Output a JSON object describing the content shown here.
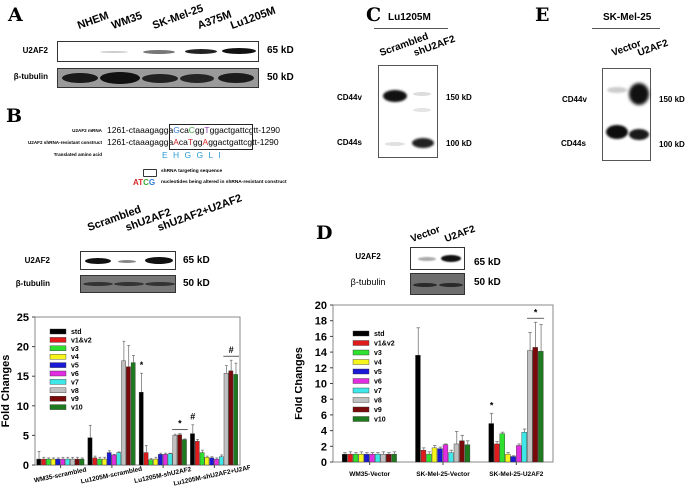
{
  "panels": {
    "A": {
      "letter": "A",
      "lanes": [
        "NHEM",
        "WM35",
        "SK-Mel-25",
        "A375M",
        "Lu1205M"
      ],
      "rows": [
        {
          "label": "U2AF2",
          "kd": "65 kD",
          "intensities": [
            0.0,
            0.15,
            0.35,
            0.85,
            0.95
          ]
        },
        {
          "label": "β-tubulin",
          "kd": "50 kD",
          "intensities": [
            1,
            1,
            1,
            1,
            1
          ]
        }
      ]
    },
    "B": {
      "letter": "B",
      "sequence": {
        "mrna_label": "U2AF2 mRNA",
        "mrna_start": "1261-",
        "mrna_prefix": "ctaaagagga",
        "mrna_boxed": [
          {
            "t": "G",
            "c": "#2b7bd6"
          },
          {
            "t": "ca",
            "c": "#000"
          },
          {
            "t": "C",
            "c": "#3aaa35"
          },
          {
            "t": "gg",
            "c": "#000"
          },
          {
            "t": "T",
            "c": "#8a3fa8"
          },
          {
            "t": "ggactgattcgtt",
            "c": "#000"
          }
        ],
        "mrna_end": "-1290",
        "construct_label": "U2AF2 shRNA-resistant construct",
        "construct_start": "1261-",
        "construct_prefix": "ctaaagagga",
        "construct_boxed": [
          {
            "t": "A",
            "c": "#d62828"
          },
          {
            "t": "ca",
            "c": "#000"
          },
          {
            "t": "T",
            "c": "#d62828"
          },
          {
            "t": "gg",
            "c": "#000"
          },
          {
            "t": "A",
            "c": "#d62828"
          },
          {
            "t": "ggactgattcgtt",
            "c": "#000"
          }
        ],
        "construct_end": "-1290",
        "amino_label": "Translated amino acid",
        "amino_acids": "E H G G L I",
        "amino_color": "#2b9bd6",
        "legend_box_text": "shRNA targeting sequence",
        "legend_letters": [
          {
            "t": "A",
            "c": "#d62828"
          },
          {
            "t": "T",
            "c": "#d62828"
          },
          {
            "t": "C",
            "c": "#3aaa35"
          },
          {
            "t": "G",
            "c": "#2b7bd6"
          }
        ],
        "legend_letters_text": "nucleotides being altered in shRNA-resistant construct"
      },
      "lanes": [
        "Scrambled",
        "shU2AF2",
        "shU2AF2+U2AF2"
      ],
      "rows": [
        {
          "label": "U2AF2",
          "kd": "65 kD"
        },
        {
          "label": "β-tubulin",
          "kd": "50 kD"
        }
      ]
    },
    "C": {
      "letter": "C",
      "title": "Lu1205M",
      "lanes": [
        "Scrambled",
        "shU2AF2"
      ],
      "row_labels": [
        "CD44v",
        "CD44s"
      ],
      "kd_labels": [
        "150 kD",
        "100 kD"
      ]
    },
    "D": {
      "letter": "D",
      "lanes": [
        "Vector",
        "U2AF2"
      ],
      "rows": [
        {
          "label": "U2AF2",
          "kd": "65 kD"
        },
        {
          "label": "β-tubulin",
          "kd": "50 kD"
        }
      ]
    },
    "E": {
      "letter": "E",
      "title": "SK-Mel-25",
      "lanes": [
        "Vector",
        "U2AF2"
      ],
      "row_labels": [
        "CD44v",
        "CD44s"
      ],
      "kd_labels": [
        "150 kD",
        "100 kD"
      ]
    }
  },
  "series_colors": {
    "std": "#000000",
    "v1&v2": "#e01b1b",
    "v3": "#2fe02f",
    "v4": "#f5f51c",
    "v5": "#1a1ad6",
    "v6": "#e02ee0",
    "v7": "#3ee8e8",
    "v8": "#c0c0c0",
    "v9": "#7a0a0a",
    "v10": "#1e7a1e"
  },
  "chart_data": [
    {
      "type": "bar",
      "panel": "B",
      "title": "",
      "xlabel": "",
      "ylabel": "Fold Changes",
      "ylim": [
        0,
        25
      ],
      "yticks": [
        0,
        5,
        10,
        15,
        20,
        25
      ],
      "grid": false,
      "legend_position": "upper-left inside",
      "categories": [
        "WM35-scrambled",
        "Lu1205M-scrambled",
        "Lu1205M-shU2AF2",
        "Lu1205M-shU2AF2+U2AF2"
      ],
      "series": [
        {
          "name": "std",
          "values": [
            1.0,
            4.6,
            12.3,
            5.3
          ],
          "errors": [
            1.3,
            2.1,
            3.2,
            1.5
          ]
        },
        {
          "name": "v1&v2",
          "values": [
            1.0,
            1.2,
            2.1,
            4.0
          ],
          "errors": [
            0.3,
            0.3,
            1.2,
            0.3
          ]
        },
        {
          "name": "v3",
          "values": [
            1.0,
            1.0,
            0.9,
            2.1
          ],
          "errors": [
            0.2,
            0.3,
            0.2,
            0.4
          ]
        },
        {
          "name": "v4",
          "values": [
            1.0,
            1.0,
            1.0,
            1.3
          ],
          "errors": [
            0.2,
            0.3,
            0.3,
            0.2
          ]
        },
        {
          "name": "v5",
          "values": [
            1.0,
            2.1,
            1.8,
            1.2
          ],
          "errors": [
            0.2,
            0.3,
            0.2,
            0.2
          ]
        },
        {
          "name": "v6",
          "values": [
            1.0,
            1.7,
            1.8,
            1.0
          ],
          "errors": [
            0.3,
            0.1,
            0.2,
            0.2
          ]
        },
        {
          "name": "v7",
          "values": [
            1.0,
            2.1,
            1.9,
            1.4
          ],
          "errors": [
            0.3,
            0.1,
            0.1,
            0.3
          ]
        },
        {
          "name": "v8",
          "values": [
            1.0,
            17.6,
            5.0,
            15.5
          ],
          "errors": [
            0.3,
            3.3,
            0.2,
            1.3
          ]
        },
        {
          "name": "v9",
          "values": [
            1.0,
            16.6,
            5.1,
            15.9
          ],
          "errors": [
            0.3,
            3.6,
            0.2,
            1.8
          ]
        },
        {
          "name": "v10",
          "values": [
            1.0,
            17.3,
            4.3,
            15.3
          ],
          "errors": [
            0.2,
            1.2,
            0.1,
            1.9
          ]
        }
      ],
      "annotations": [
        {
          "text": "*",
          "category": "Lu1205M-shU2AF2",
          "series": "std"
        },
        {
          "text": "*",
          "category": "Lu1205M-shU2AF2",
          "series": "v8-v10",
          "bar": true
        },
        {
          "text": "#",
          "category": "Lu1205M-shU2AF2+U2AF2",
          "series": "std"
        },
        {
          "text": "#",
          "category": "Lu1205M-shU2AF2+U2AF2",
          "series": "v8-v10",
          "bar": true
        }
      ]
    },
    {
      "type": "bar",
      "panel": "D",
      "title": "",
      "xlabel": "",
      "ylabel": "Fold Changes",
      "ylim": [
        0,
        20
      ],
      "yticks": [
        0,
        2,
        4,
        6,
        8,
        10,
        12,
        14,
        16,
        18,
        20
      ],
      "grid": false,
      "legend_position": "upper-left inside",
      "categories": [
        "WM35-Vector",
        "SK-Mel-25-Vector",
        "SK-Mel-25-U2AF2"
      ],
      "series": [
        {
          "name": "std",
          "values": [
            1.0,
            13.6,
            4.9
          ],
          "errors": [
            0.2,
            3.5,
            1.3
          ]
        },
        {
          "name": "v1&v2",
          "values": [
            1.0,
            1.5,
            2.3
          ],
          "errors": [
            0.3,
            0.3,
            0.3
          ]
        },
        {
          "name": "v3",
          "values": [
            1.0,
            1.0,
            3.6
          ],
          "errors": [
            0.2,
            0.3,
            0.2
          ]
        },
        {
          "name": "v4",
          "values": [
            1.0,
            1.8,
            1.0
          ],
          "errors": [
            0.3,
            0.3,
            0.2
          ]
        },
        {
          "name": "v5",
          "values": [
            1.0,
            1.7,
            0.7
          ],
          "errors": [
            0.2,
            0.2,
            0.1
          ]
        },
        {
          "name": "v6",
          "values": [
            1.0,
            2.2,
            2.1
          ],
          "errors": [
            0.2,
            0.1,
            0.2
          ]
        },
        {
          "name": "v7",
          "values": [
            1.0,
            1.2,
            3.8
          ],
          "errors": [
            0.2,
            0.3,
            0.4
          ]
        },
        {
          "name": "v8",
          "values": [
            1.0,
            2.3,
            14.2
          ],
          "errors": [
            0.3,
            1.6,
            2.3
          ]
        },
        {
          "name": "v9",
          "values": [
            1.0,
            2.7,
            14.6
          ],
          "errors": [
            0.2,
            0.7,
            3.2
          ]
        },
        {
          "name": "v10",
          "values": [
            1.0,
            2.2,
            14.1
          ],
          "errors": [
            0.3,
            0.5,
            3.4
          ]
        }
      ],
      "annotations": [
        {
          "text": "*",
          "category": "SK-Mel-25-U2AF2",
          "series": "std"
        },
        {
          "text": "*",
          "category": "SK-Mel-25-U2AF2",
          "series": "v8-v10",
          "bar": true
        }
      ]
    }
  ]
}
